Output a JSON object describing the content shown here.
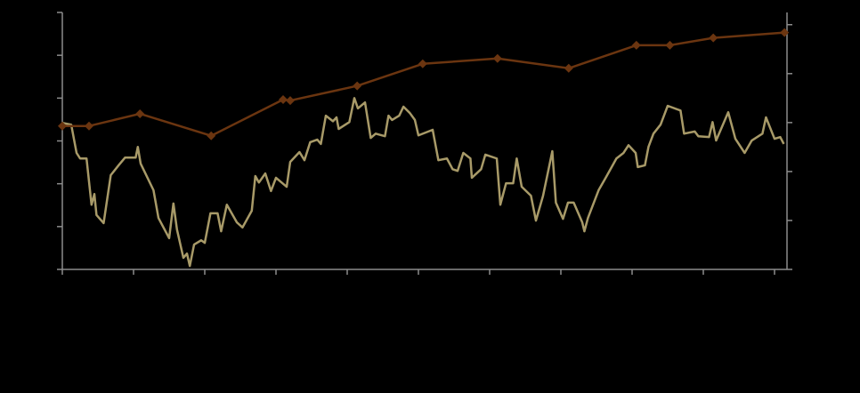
{
  "chart_data": {
    "type": "line",
    "xlim": [
      0,
      10.175
    ],
    "xticks": [
      0,
      1,
      2,
      3,
      4,
      5,
      6,
      7,
      8,
      9,
      10
    ],
    "ylim": [
      0,
      6
    ],
    "yticks": [
      0,
      1,
      2,
      3,
      4,
      5,
      6
    ],
    "y2lim": [
      0,
      5.25
    ],
    "y2ticks": [
      0,
      1,
      2,
      3,
      4,
      5
    ],
    "series": [
      {
        "color": "#a89a68",
        "axis": "y",
        "x": [
          0,
          0.125,
          0.2,
          0.25,
          0.34,
          0.41,
          0.45,
          0.48,
          0.58,
          0.68,
          0.79,
          0.88,
          1.03,
          1.06,
          1.1,
          1.28,
          1.35,
          1.5,
          1.56,
          1.61,
          1.7,
          1.75,
          1.79,
          1.85,
          1.95,
          2,
          2.08,
          2.18,
          2.23,
          2.31,
          2.45,
          2.53,
          2.66,
          2.71,
          2.76,
          2.85,
          2.93,
          3,
          3.15,
          3.2,
          3.33,
          3.4,
          3.48,
          3.58,
          3.63,
          3.7,
          3.8,
          3.85,
          3.88,
          4.03,
          4.1,
          4.15,
          4.25,
          4.33,
          4.4,
          4.53,
          4.58,
          4.63,
          4.73,
          4.79,
          4.88,
          4.95,
          5,
          5.2,
          5.28,
          5.4,
          5.48,
          5.55,
          5.63,
          5.73,
          5.75,
          5.88,
          5.94,
          6.1,
          6.15,
          6.23,
          6.33,
          6.38,
          6.45,
          6.58,
          6.65,
          6.75,
          6.88,
          6.93,
          7.03,
          7.1,
          7.18,
          7.3,
          7.33,
          7.38,
          7.53,
          7.63,
          7.78,
          7.88,
          7.95,
          8.05,
          8.08,
          8.18,
          8.23,
          8.3,
          8.4,
          8.5,
          8.68,
          8.73,
          8.88,
          8.93,
          9.08,
          9.13,
          9.18,
          9.35,
          9.45,
          9.58,
          9.68,
          9.83,
          9.88,
          10,
          10.08,
          10.13
        ],
        "values": [
          3.42,
          3.38,
          2.72,
          2.59,
          2.59,
          1.51,
          1.76,
          1.27,
          1.08,
          2.2,
          2.43,
          2.61,
          2.61,
          2.86,
          2.47,
          1.85,
          1.2,
          0.73,
          1.54,
          0.93,
          0.27,
          0.37,
          0.08,
          0.58,
          0.68,
          0.62,
          1.31,
          1.31,
          0.89,
          1.51,
          1.1,
          0.98,
          1.37,
          2.18,
          2.03,
          2.24,
          1.83,
          2.14,
          1.93,
          2.51,
          2.74,
          2.55,
          2.97,
          3.03,
          2.93,
          3.59,
          3.46,
          3.55,
          3.28,
          3.44,
          4,
          3.76,
          3.9,
          3.07,
          3.17,
          3.11,
          3.59,
          3.49,
          3.59,
          3.8,
          3.65,
          3.49,
          3.13,
          3.26,
          2.55,
          2.59,
          2.34,
          2.3,
          2.72,
          2.59,
          2.14,
          2.34,
          2.68,
          2.59,
          1.51,
          2.01,
          2.01,
          2.59,
          1.93,
          1.72,
          1.14,
          1.72,
          2.76,
          1.56,
          1.18,
          1.56,
          1.56,
          1.1,
          0.89,
          1.2,
          1.85,
          2.14,
          2.59,
          2.72,
          2.9,
          2.72,
          2.39,
          2.43,
          2.86,
          3.17,
          3.38,
          3.82,
          3.71,
          3.17,
          3.22,
          3.11,
          3.09,
          3.44,
          3.01,
          3.67,
          3.05,
          2.72,
          3.01,
          3.17,
          3.55,
          3.05,
          3.09,
          2.93
        ]
      },
      {
        "color": "#6b3510",
        "axis": "y2",
        "marker": "diamond",
        "x": [
          0,
          0.375,
          1.09,
          2.09,
          3.1,
          3.2,
          4.14,
          5.06,
          6.11,
          7.11,
          8.06,
          8.53,
          9.14,
          10.14
        ],
        "values": [
          2.93,
          2.93,
          3.18,
          2.73,
          3.47,
          3.45,
          3.75,
          4.2,
          4.31,
          4.11,
          4.58,
          4.58,
          4.73,
          4.84
        ]
      }
    ]
  }
}
